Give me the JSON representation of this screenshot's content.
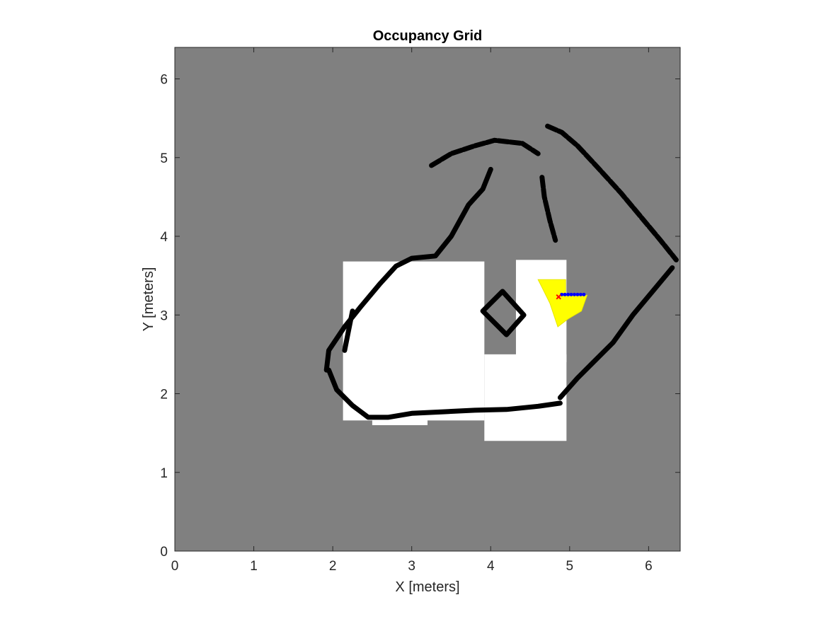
{
  "chart_data": {
    "type": "heatmap",
    "title": "Occupancy Grid",
    "xlabel": "X [meters]",
    "ylabel": "Y [meters]",
    "xlim": [
      0,
      6.4
    ],
    "ylim": [
      0,
      6.4
    ],
    "xticks": [
      "0",
      "1",
      "2",
      "3",
      "4",
      "5",
      "6"
    ],
    "yticks": [
      "0",
      "1",
      "2",
      "3",
      "4",
      "5",
      "6"
    ],
    "grid": false,
    "legend": "none",
    "colors": {
      "unknown": "#808080",
      "free": "#ffffff",
      "occupied": "#000000",
      "frontier": "#ffff00",
      "path": "#0000ff",
      "robot": "#ff0000"
    },
    "free_regions": [
      {
        "x": [
          2.13,
          3.92
        ],
        "y": [
          1.66,
          3.68
        ]
      },
      {
        "x": [
          3.92,
          4.96
        ],
        "y": [
          1.4,
          2.5
        ]
      },
      {
        "x": [
          4.32,
          4.96
        ],
        "y": [
          2.4,
          3.7
        ]
      },
      {
        "x": [
          2.5,
          3.2
        ],
        "y": [
          1.6,
          1.8
        ]
      }
    ],
    "occupied_walls": [
      [
        [
          1.92,
          2.3
        ],
        [
          1.95,
          2.55
        ],
        [
          2.15,
          2.85
        ],
        [
          2.35,
          3.1
        ],
        [
          2.6,
          3.4
        ],
        [
          2.8,
          3.62
        ],
        [
          3.0,
          3.72
        ],
        [
          3.3,
          3.75
        ],
        [
          3.5,
          4.0
        ],
        [
          3.72,
          4.4
        ],
        [
          3.9,
          4.6
        ],
        [
          4.0,
          4.85
        ]
      ],
      [
        [
          3.25,
          4.9
        ],
        [
          3.5,
          5.05
        ],
        [
          3.8,
          5.15
        ],
        [
          4.05,
          5.22
        ],
        [
          4.4,
          5.18
        ],
        [
          4.6,
          5.05
        ]
      ],
      [
        [
          4.72,
          5.4
        ],
        [
          4.9,
          5.32
        ],
        [
          5.1,
          5.15
        ],
        [
          5.35,
          4.88
        ],
        [
          5.65,
          4.55
        ],
        [
          5.9,
          4.25
        ],
        [
          6.15,
          3.95
        ],
        [
          6.35,
          3.7
        ]
      ],
      [
        [
          6.3,
          3.6
        ],
        [
          6.05,
          3.3
        ],
        [
          5.8,
          3.0
        ],
        [
          5.55,
          2.65
        ],
        [
          5.3,
          2.4
        ],
        [
          5.1,
          2.2
        ],
        [
          4.88,
          1.95
        ]
      ],
      [
        [
          4.88,
          1.88
        ],
        [
          4.6,
          1.84
        ],
        [
          4.2,
          1.8
        ],
        [
          3.8,
          1.79
        ],
        [
          3.4,
          1.77
        ],
        [
          3.0,
          1.75
        ],
        [
          2.7,
          1.7
        ],
        [
          2.45,
          1.7
        ],
        [
          2.25,
          1.85
        ],
        [
          2.05,
          2.05
        ],
        [
          1.95,
          2.3
        ]
      ],
      [
        [
          4.65,
          4.75
        ],
        [
          4.68,
          4.5
        ],
        [
          4.75,
          4.2
        ],
        [
          4.82,
          3.95
        ]
      ],
      [
        [
          3.9,
          3.05
        ],
        [
          4.15,
          3.3
        ],
        [
          4.42,
          3.0
        ],
        [
          4.2,
          2.75
        ],
        [
          3.9,
          3.05
        ]
      ],
      [
        [
          2.25,
          3.05
        ],
        [
          2.2,
          2.8
        ],
        [
          2.15,
          2.55
        ]
      ]
    ],
    "frontier_region": [
      [
        4.6,
        3.45
      ],
      [
        4.95,
        3.45
      ],
      [
        4.95,
        3.25
      ],
      [
        5.22,
        3.25
      ],
      [
        5.15,
        3.05
      ],
      [
        4.98,
        2.95
      ],
      [
        4.85,
        2.85
      ],
      [
        4.75,
        3.15
      ],
      [
        4.65,
        3.35
      ]
    ],
    "path_points": {
      "x": [
        4.9,
        4.94,
        4.98,
        5.02,
        5.06,
        5.1,
        5.14,
        5.18
      ],
      "y": [
        3.26,
        3.26,
        3.26,
        3.26,
        3.26,
        3.26,
        3.26,
        3.26
      ]
    },
    "robot_position": {
      "x": 4.86,
      "y": 3.23
    }
  }
}
